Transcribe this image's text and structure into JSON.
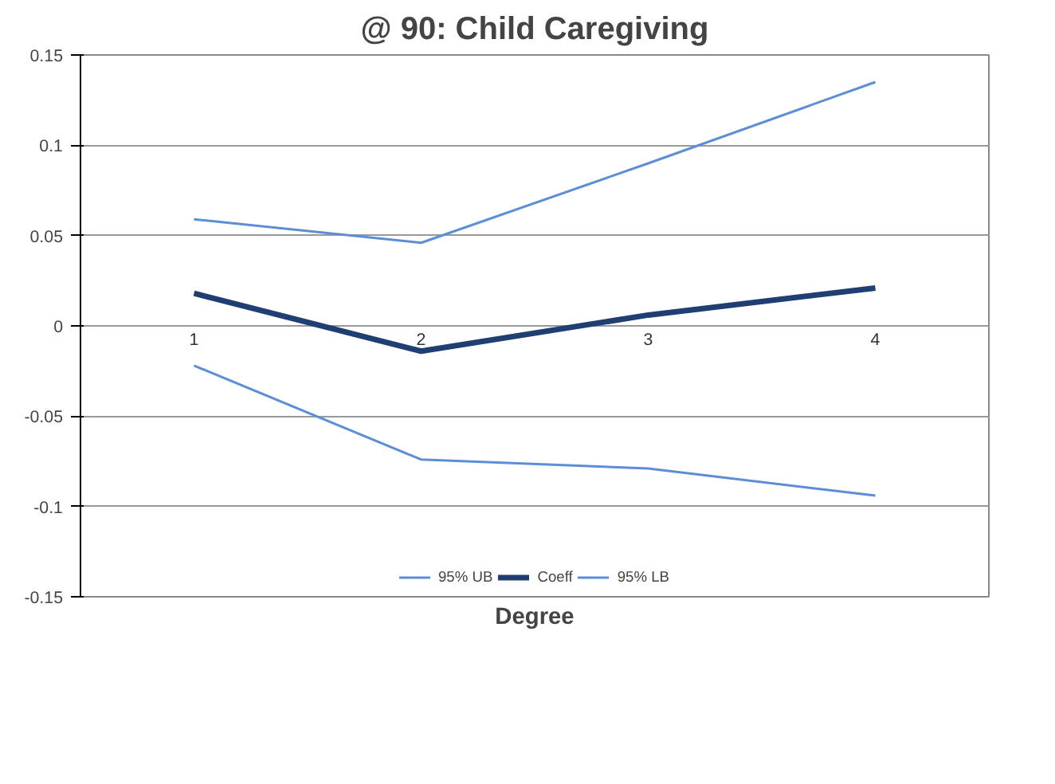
{
  "chart_data": {
    "type": "line",
    "title": "@ 90: Child Caregiving",
    "xlabel": "Degree",
    "categories": [
      "1",
      "2",
      "3",
      "4"
    ],
    "series": [
      {
        "name": "95% UB",
        "color": "#5b8ed6",
        "values": [
          0.059,
          0.046,
          0.09,
          0.135
        ]
      },
      {
        "name": "Coeff",
        "color": "#1f3f73",
        "values": [
          0.018,
          -0.014,
          0.006,
          0.021
        ]
      },
      {
        "name": "95% LB",
        "color": "#5b8ed6",
        "values": [
          -0.022,
          -0.074,
          -0.079,
          -0.094
        ]
      }
    ],
    "ylim": [
      -0.15,
      0.15
    ],
    "yticks": [
      -0.15,
      -0.1,
      -0.05,
      0,
      0.05,
      0.1,
      0.15
    ],
    "grid": "y",
    "legend": "bottom",
    "marker": "none",
    "line_style": "solid"
  }
}
